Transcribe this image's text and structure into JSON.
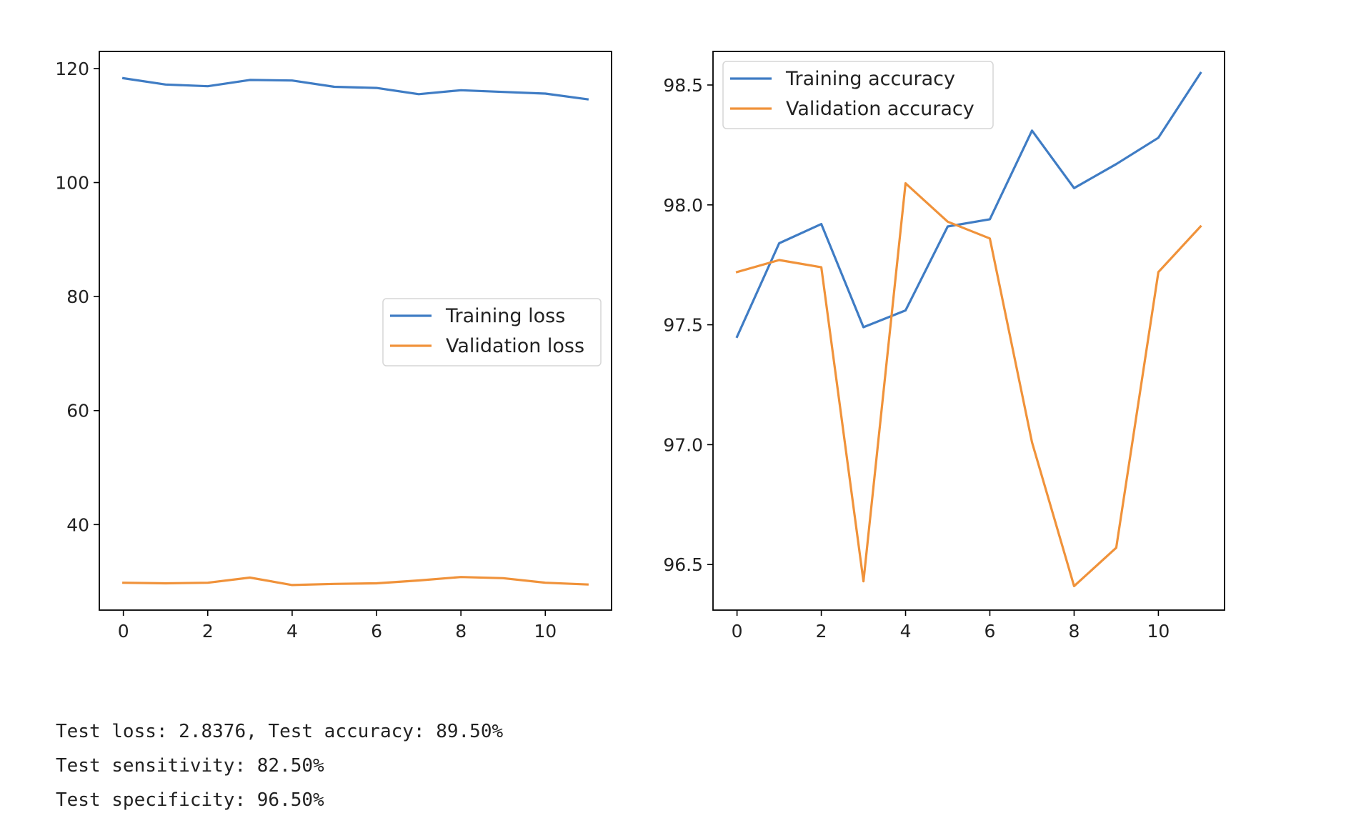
{
  "chart_data": [
    {
      "type": "line",
      "x": [
        0,
        1,
        2,
        3,
        4,
        5,
        6,
        7,
        8,
        9,
        10,
        11
      ],
      "series": [
        {
          "name": "Training loss",
          "color": "#3f7cc4",
          "values": [
            118.3,
            117.2,
            116.9,
            118.0,
            117.9,
            116.8,
            116.6,
            115.5,
            116.2,
            115.9,
            115.6,
            114.6
          ]
        },
        {
          "name": "Validation loss",
          "color": "#f0923a",
          "values": [
            29.8,
            29.7,
            29.8,
            30.7,
            29.4,
            29.6,
            29.7,
            30.2,
            30.8,
            30.6,
            29.8,
            29.5
          ]
        }
      ],
      "xticks": [
        0,
        2,
        4,
        6,
        8,
        10
      ],
      "yticks": [
        40,
        60,
        80,
        100,
        120
      ],
      "ytick_labels": [
        "40",
        "60",
        "80",
        "100",
        "120"
      ],
      "xlim": [
        -0.57,
        11.57
      ],
      "ylim": [
        25.0,
        123.0
      ],
      "legend": "center-right",
      "grid": false
    },
    {
      "type": "line",
      "x": [
        0,
        1,
        2,
        3,
        4,
        5,
        6,
        7,
        8,
        9,
        10,
        11
      ],
      "series": [
        {
          "name": "Training accuracy",
          "color": "#3f7cc4",
          "values": [
            97.45,
            97.84,
            97.92,
            97.49,
            97.56,
            97.91,
            97.94,
            98.31,
            98.07,
            98.17,
            98.28,
            98.55
          ]
        },
        {
          "name": "Validation accuracy",
          "color": "#f0923a",
          "values": [
            97.72,
            97.77,
            97.74,
            96.43,
            98.09,
            97.93,
            97.86,
            97.01,
            96.41,
            96.57,
            97.72,
            97.91
          ]
        }
      ],
      "xticks": [
        0,
        2,
        4,
        6,
        8,
        10
      ],
      "yticks": [
        96.5,
        97.0,
        97.5,
        98.0,
        98.5
      ],
      "ytick_labels": [
        "96.5",
        "97.0",
        "97.5",
        "98.0",
        "98.5"
      ],
      "xlim": [
        -0.57,
        11.57
      ],
      "ylim": [
        96.31,
        98.64
      ],
      "legend": "top-left",
      "grid": false
    }
  ],
  "output": {
    "line1": "Test loss: 2.8376, Test accuracy: 89.50%",
    "line2": "Test sensitivity: 82.50%",
    "line3": "Test specificity: 96.50%"
  }
}
